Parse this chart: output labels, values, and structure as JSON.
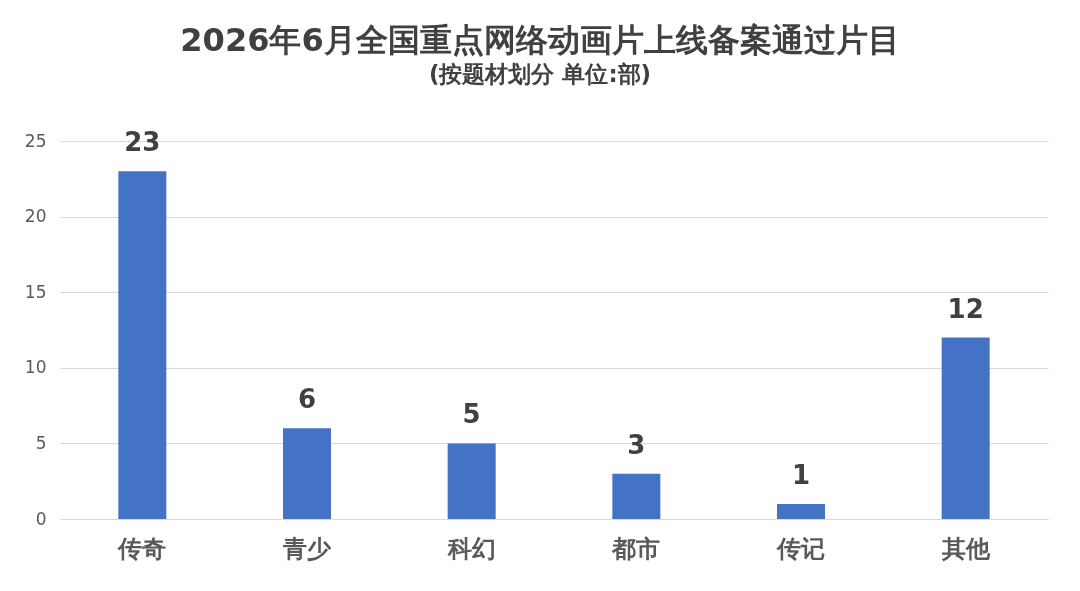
{
  "chart_data": {
    "type": "bar",
    "title": "2026年6月全国重点网络动画片上线备案通过片目",
    "subtitle": "(按题材划分 单位:部)",
    "categories": [
      "传奇",
      "青少",
      "科幻",
      "都市",
      "传记",
      "其他"
    ],
    "values": [
      23,
      6,
      5,
      3,
      1,
      12
    ],
    "color": "#4472c4",
    "ylim": [
      0,
      25
    ],
    "yticks": [
      0,
      5,
      10,
      15,
      20,
      25
    ],
    "grid": "y",
    "data_labels": true
  }
}
